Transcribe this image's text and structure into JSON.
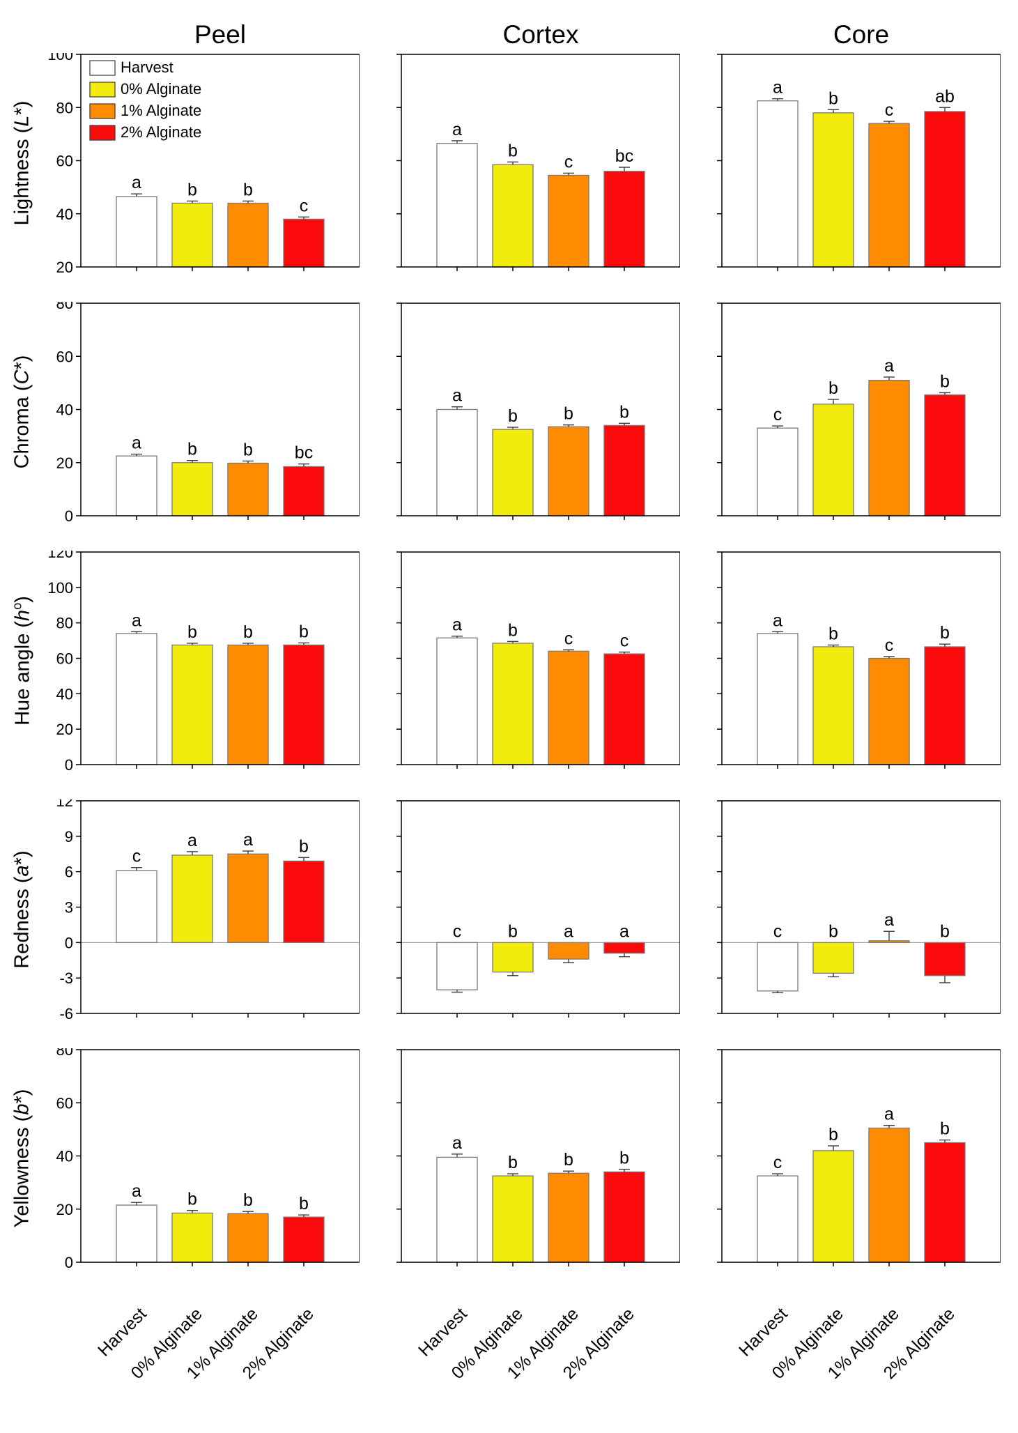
{
  "figure": {
    "columns": [
      "Peel",
      "Cortex",
      "Core"
    ],
    "treatments": [
      "Harvest",
      "0% Alginate",
      "1% Alginate",
      "2% Alginate"
    ],
    "series_colors": [
      "#ffffff",
      "#f2ec0d",
      "#ff8b00",
      "#fa0a0a"
    ],
    "bar_border_color": "#7a7a7a",
    "error_bar_color": "#3d3d3d",
    "axis_color": "#000000",
    "zero_line_color": "#8c8c8c",
    "legend": {
      "items": [
        "Harvest",
        "0% Alginate",
        "1% Alginate",
        "2% Alginate"
      ],
      "position": "top-left of first panel"
    }
  },
  "chart_data": [
    {
      "type": "bar",
      "ylabel": "Lightness (L*)",
      "ylabel_parts": {
        "pre": "Lightness (",
        "var": "L",
        "sup": "",
        "post": "*)"
      },
      "ylim": [
        20,
        100
      ],
      "yticks": [
        100,
        80,
        60,
        40,
        20
      ],
      "categories": [
        "Harvest",
        "0% Alginate",
        "1% Alginate",
        "2% Alginate"
      ],
      "panels": [
        {
          "column": "Peel",
          "values": [
            46.5,
            44.0,
            44.0,
            38.0
          ],
          "errors": [
            1.0,
            0.8,
            0.8,
            0.8
          ],
          "letters": [
            "a",
            "b",
            "b",
            "c"
          ],
          "show_legend": true
        },
        {
          "column": "Cortex",
          "values": [
            66.5,
            58.5,
            54.5,
            56.0
          ],
          "errors": [
            1.0,
            1.0,
            0.8,
            1.5
          ],
          "letters": [
            "a",
            "b",
            "c",
            "bc"
          ]
        },
        {
          "column": "Core",
          "values": [
            82.5,
            78.0,
            74.0,
            78.5
          ],
          "errors": [
            0.8,
            1.2,
            0.8,
            1.5
          ],
          "letters": [
            "a",
            "b",
            "c",
            "ab"
          ]
        }
      ]
    },
    {
      "type": "bar",
      "ylabel": "Chroma (C*)",
      "ylabel_parts": {
        "pre": "Chroma (",
        "var": "C",
        "sup": "",
        "post": "*)"
      },
      "ylim": [
        0,
        80
      ],
      "yticks": [
        80,
        60,
        40,
        20,
        0
      ],
      "categories": [
        "Harvest",
        "0% Alginate",
        "1% Alginate",
        "2% Alginate"
      ],
      "panels": [
        {
          "column": "Peel",
          "values": [
            22.5,
            20.0,
            19.8,
            18.5
          ],
          "errors": [
            0.7,
            0.8,
            0.8,
            1.0
          ],
          "letters": [
            "a",
            "b",
            "b",
            "bc"
          ]
        },
        {
          "column": "Cortex",
          "values": [
            40.0,
            32.5,
            33.5,
            34.0
          ],
          "errors": [
            1.0,
            0.8,
            0.7,
            0.8
          ],
          "letters": [
            "a",
            "b",
            "b",
            "b"
          ]
        },
        {
          "column": "Core",
          "values": [
            33.0,
            42.0,
            51.0,
            45.5
          ],
          "errors": [
            0.8,
            1.8,
            1.2,
            0.8
          ],
          "letters": [
            "c",
            "b",
            "a",
            "b"
          ]
        }
      ]
    },
    {
      "type": "bar",
      "ylabel": "Hue angle (h°)",
      "ylabel_parts": {
        "pre": "Hue angle (",
        "var": "h",
        "sup": "o",
        "post": ")"
      },
      "ylim": [
        0,
        120
      ],
      "yticks": [
        120,
        100,
        80,
        60,
        40,
        20,
        0
      ],
      "categories": [
        "Harvest",
        "0% Alginate",
        "1% Alginate",
        "2% Alginate"
      ],
      "panels": [
        {
          "column": "Peel",
          "values": [
            74.0,
            67.5,
            67.5,
            67.5
          ],
          "errors": [
            1.0,
            1.0,
            1.0,
            1.2
          ],
          "letters": [
            "a",
            "b",
            "b",
            "b"
          ]
        },
        {
          "column": "Cortex",
          "values": [
            71.5,
            68.5,
            64.0,
            62.5
          ],
          "errors": [
            1.0,
            1.0,
            0.8,
            1.0
          ],
          "letters": [
            "a",
            "b",
            "c",
            "c"
          ]
        },
        {
          "column": "Core",
          "values": [
            74.0,
            66.5,
            60.0,
            66.5
          ],
          "errors": [
            1.0,
            1.0,
            1.0,
            1.5
          ],
          "letters": [
            "a",
            "b",
            "c",
            "b"
          ]
        }
      ]
    },
    {
      "type": "bar",
      "ylabel": "Redness (a*)",
      "ylabel_parts": {
        "pre": "Redness (",
        "var": "a",
        "sup": "",
        "post": "*)"
      },
      "ylim": [
        -6,
        12
      ],
      "yticks": [
        12,
        9,
        6,
        3,
        0,
        -3,
        -6
      ],
      "zero_line": true,
      "categories": [
        "Harvest",
        "0% Alginate",
        "1% Alginate",
        "2% Alginate"
      ],
      "panels": [
        {
          "column": "Peel",
          "values": [
            6.1,
            7.4,
            7.5,
            6.9
          ],
          "errors": [
            0.25,
            0.3,
            0.25,
            0.3
          ],
          "letters": [
            "c",
            "a",
            "a",
            "b"
          ]
        },
        {
          "column": "Cortex",
          "values": [
            -4.0,
            -2.5,
            -1.4,
            -0.9
          ],
          "errors": [
            0.2,
            0.3,
            0.3,
            0.3
          ],
          "letters": [
            "c",
            "b",
            "a",
            "a"
          ]
        },
        {
          "column": "Core",
          "values": [
            -4.1,
            -2.6,
            0.15,
            -2.8
          ],
          "errors": [
            0.15,
            0.3,
            0.8,
            0.6
          ],
          "letters": [
            "c",
            "b",
            "a",
            "b"
          ]
        }
      ]
    },
    {
      "type": "bar",
      "ylabel": "Yellowness (b*)",
      "ylabel_parts": {
        "pre": "Yellowness (",
        "var": "b",
        "sup": "",
        "post": "*)"
      },
      "ylim": [
        0,
        80
      ],
      "yticks": [
        80,
        60,
        40,
        20,
        0
      ],
      "categories": [
        "Harvest",
        "0% Alginate",
        "1% Alginate",
        "2% Alginate"
      ],
      "panels": [
        {
          "column": "Peel",
          "values": [
            21.5,
            18.5,
            18.3,
            17.0
          ],
          "errors": [
            1.0,
            1.0,
            0.8,
            0.8
          ],
          "letters": [
            "a",
            "b",
            "b",
            "b"
          ]
        },
        {
          "column": "Cortex",
          "values": [
            39.5,
            32.5,
            33.5,
            34.0
          ],
          "errors": [
            1.2,
            0.8,
            0.8,
            1.0
          ],
          "letters": [
            "a",
            "b",
            "b",
            "b"
          ]
        },
        {
          "column": "Core",
          "values": [
            32.5,
            42.0,
            50.5,
            45.0
          ],
          "errors": [
            0.8,
            1.8,
            1.0,
            1.0
          ],
          "letters": [
            "c",
            "b",
            "a",
            "b"
          ]
        }
      ]
    }
  ]
}
